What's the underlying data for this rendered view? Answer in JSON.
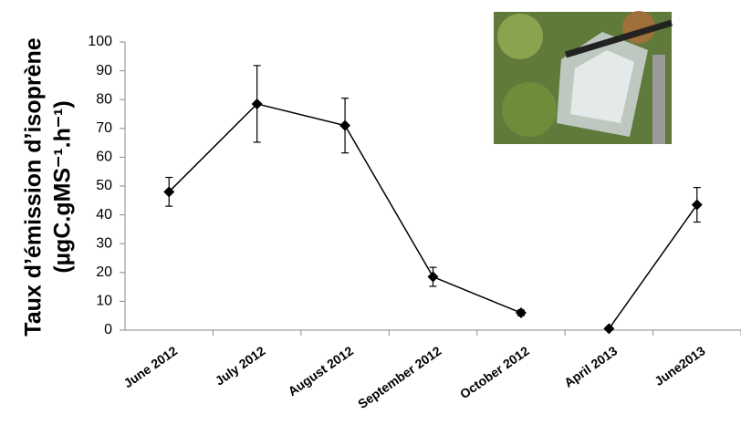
{
  "chart_data": {
    "type": "line",
    "y_label": [
      "Taux d’émission d’isoprène",
      "(µgC.gMS⁻¹.h⁻¹)"
    ],
    "categories": [
      "June 2012",
      "July 2012",
      "August 2012",
      "September 2012",
      "October 2012",
      "April 2013",
      "June2013"
    ],
    "series": [
      {
        "color": "#000000",
        "values": [
          48,
          78.5,
          71,
          18.5,
          6,
          0.5,
          43.5
        ],
        "errors": [
          5,
          13.3,
          9.5,
          3.3,
          1,
          0,
          6
        ]
      }
    ],
    "breaks": [
      5
    ],
    "ylim": [
      0,
      100
    ],
    "yticks": [
      0,
      10,
      20,
      30,
      40,
      50,
      60,
      70,
      80,
      90,
      100
    ],
    "grid": false
  }
}
